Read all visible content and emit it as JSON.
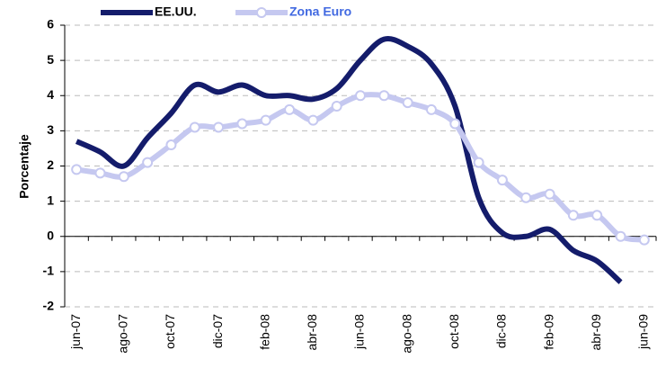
{
  "chart_data": {
    "type": "line",
    "y_label": "Porcentaje",
    "categories": [
      "jun-07",
      null,
      "ago-07",
      null,
      "oct-07",
      null,
      "dic-07",
      null,
      "feb-08",
      null,
      "abr-08",
      null,
      "jun-08",
      null,
      "ago-08",
      null,
      "oct-08",
      null,
      "dic-08",
      null,
      "feb-09",
      null,
      "abr-09",
      null,
      "jun-09"
    ],
    "series": [
      {
        "name": "EE.UU.",
        "color": "#141c6b",
        "markers": false,
        "values": [
          2.7,
          2.4,
          2.0,
          2.8,
          3.5,
          4.3,
          4.1,
          4.3,
          4.0,
          4.0,
          3.9,
          4.2,
          5.0,
          5.6,
          5.4,
          4.9,
          3.7,
          1.1,
          0.1,
          0.0,
          0.2,
          -0.4,
          -0.7,
          -1.3,
          null
        ]
      },
      {
        "name": "Zona Euro",
        "color": "#c5c8f0",
        "markers": true,
        "values": [
          1.9,
          1.8,
          1.7,
          2.1,
          2.6,
          3.1,
          3.1,
          3.2,
          3.3,
          3.6,
          3.3,
          3.7,
          4.0,
          4.0,
          3.8,
          3.6,
          3.2,
          2.1,
          1.6,
          1.1,
          1.2,
          0.6,
          0.6,
          0.0,
          -0.1
        ]
      }
    ],
    "ylim": [
      -2,
      6
    ],
    "yticks": [
      -2,
      -1,
      0,
      1,
      2,
      3,
      4,
      5,
      6
    ],
    "grid": true,
    "smooth": true
  }
}
